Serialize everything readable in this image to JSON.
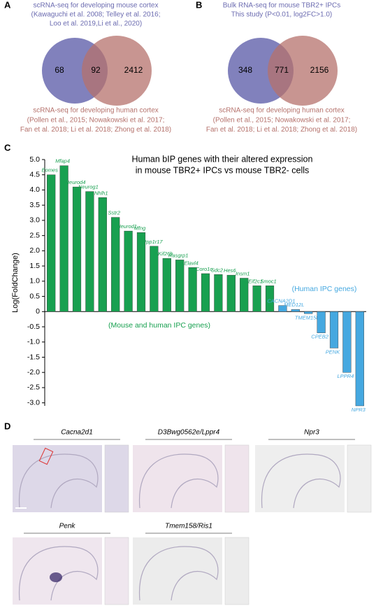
{
  "panels": {
    "a": "A",
    "b": "B",
    "c": "C",
    "d": "D"
  },
  "chart_data": [
    {
      "type": "venn",
      "sets": [
        {
          "name": "scRNA-seq for developing mouse cortex",
          "lines": [
            "(Kawaguchi et al. 2008; Telley et al. 2016;",
            "Loo et al. 2019,Li et al., 2020)"
          ],
          "color": "#6b6bb0"
        },
        {
          "name": "scRNA-seq for developing human cortex",
          "lines": [
            "(Pollen et al., 2015; Nowakowski et al. 2017;",
            "Fan et al. 2018; Li et al. 2018; Zhong et al. 2018)"
          ],
          "color": "#b5726c"
        }
      ],
      "values": [
        68,
        92,
        2412
      ]
    },
    {
      "type": "venn",
      "sets": [
        {
          "name": "Bulk RNA-seq for mouse TBR2+ IPCs",
          "lines": [
            "This study (P<0.01, log2FC>1.0)"
          ],
          "color": "#6b6bb0"
        },
        {
          "name": "scRNA-seq for developing human cortex",
          "lines": [
            "(Pollen et al., 2015; Nowakowski et al. 2017;",
            "Fan et al. 2018; Li et al. 2018; Zhong et al. 2018)"
          ],
          "color": "#b5726c"
        }
      ],
      "values": [
        348,
        771,
        2156
      ]
    },
    {
      "type": "bar",
      "title": [
        "Human bIP genes with their altered expression",
        "in mouse TBR2+ IPCs vs mouse TBR2- cells"
      ],
      "y_label": "Log(FoldChange)",
      "categories": [
        "Eomes",
        "Mfap4",
        "Neurod4",
        "Neurog1",
        "Nhlh1",
        "Sstr2",
        "Neurod1",
        "Mfng",
        "Ppp1r17",
        "Kif26b",
        "Rasgrp1",
        "Elavl4",
        "Coro1c",
        "Sdc2",
        "Hes6",
        "Insm1",
        "Eif2c1",
        "Smoc1",
        "CACNA2D1",
        "MED12L",
        "TMEM158",
        "CPEB2",
        "PENK",
        "LPPR4",
        "NPR3"
      ],
      "series": [
        {
          "name": "(Mouse and human IPC genes)",
          "color": "#18a050",
          "values": [
            4.5,
            4.8,
            4.1,
            3.95,
            3.75,
            3.1,
            2.65,
            2.6,
            2.15,
            1.75,
            1.7,
            1.45,
            1.25,
            1.22,
            1.2,
            1.1,
            0.85,
            0.85,
            null,
            null,
            null,
            null,
            null,
            null,
            null
          ]
        },
        {
          "name": "(Human IPC genes)",
          "color": "#45a8e0",
          "values": [
            null,
            null,
            null,
            null,
            null,
            null,
            null,
            null,
            null,
            null,
            null,
            null,
            null,
            null,
            null,
            null,
            null,
            null,
            0.2,
            0.07,
            -0.07,
            -0.7,
            -1.2,
            -2.0,
            -3.1
          ]
        }
      ],
      "ylim": [
        -3.1,
        5.0
      ],
      "yticks": [
        {
          "value": 5,
          "label": "5.0"
        },
        {
          "value": 4.5,
          "label": "4.5"
        },
        {
          "value": 4,
          "label": "4.0"
        },
        {
          "value": 3.5,
          "label": "3.5"
        },
        {
          "value": 3,
          "label": "3.0"
        },
        {
          "value": 2.5,
          "label": "2.5"
        },
        {
          "value": 2,
          "label": "2.0"
        },
        {
          "value": 1.5,
          "label": "1.5"
        },
        {
          "value": 1,
          "label": "1.0"
        },
        {
          "value": 0.5,
          "label": "0.5"
        },
        0,
        {
          "value": -0.5,
          "label": "-0.5"
        },
        {
          "value": -1,
          "label": "-1.0"
        },
        {
          "value": -1.5,
          "label": "-1.5"
        },
        {
          "value": -2,
          "label": "-2.0"
        },
        {
          "value": -2.5,
          "label": "-2.5"
        },
        {
          "value": -3,
          "label": "-3.0"
        }
      ]
    }
  ],
  "images": [
    {
      "label": "Cacna2d1"
    },
    {
      "label": "D3Bwg0562e/Lppr4"
    },
    {
      "label": "Npr3"
    },
    {
      "label": "Penk"
    },
    {
      "label": "Tmem158/Ris1"
    }
  ]
}
